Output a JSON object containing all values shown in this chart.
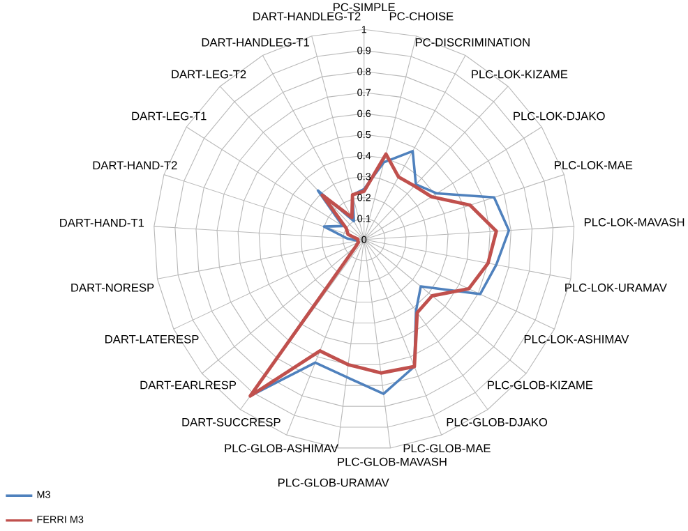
{
  "chart_data": {
    "type": "radar",
    "categories": [
      "PC-SIMPLE",
      "PC-CHOISE",
      "PC-DISCRIMINATION",
      "PLC-LOK-KIZAME",
      "PLC-LOK-DJAKO",
      "PLC-LOK-MAE",
      "PLC-LOK-MAVASH",
      "PLC-LOK-URAMAV",
      "PLC-LOK-ASHIMAV",
      "PLC-GLOB-KIZAME",
      "PLC-GLOB-DJAKO",
      "PLC-GLOB-MAE",
      "PLC-GLOB-MAVASH",
      "PLC-GLOB-URAMAV",
      "PLC-GLOB-ASHIMAV",
      "DART-SUCCRESP",
      "DART-EARLRESP",
      "DART-LATERESP",
      "DART-NORESP",
      "DART-HAND-T1",
      "DART-HAND-T2",
      "DART-LEG-T1",
      "DART-LEG-T2",
      "DART-HANDLEG-T1",
      "DART-HANDLEG-T2"
    ],
    "series": [
      {
        "name": "M3",
        "color": "#4f81bd",
        "values": [
          0.24,
          0.38,
          0.48,
          0.36,
          0.41,
          0.65,
          0.69,
          0.64,
          0.61,
          0.35,
          0.42,
          0.65,
          0.74,
          0.66,
          0.63,
          0.92,
          0.05,
          0.03,
          0.03,
          0.08,
          0.2,
          0.12,
          0.32,
          0.1,
          0.22
        ]
      },
      {
        "name": "FERRI M3",
        "color": "#c0504d",
        "values": [
          0.23,
          0.42,
          0.34,
          0.35,
          0.38,
          0.53,
          0.63,
          0.6,
          0.55,
          0.42,
          0.43,
          0.65,
          0.64,
          0.6,
          0.57,
          0.92,
          0.05,
          0.03,
          0.03,
          0.03,
          0.08,
          0.1,
          0.29,
          0.12,
          0.22
        ]
      }
    ],
    "ylim": [
      0,
      1
    ],
    "yticks": [
      0,
      0.1,
      0.2,
      0.3,
      0.4,
      0.5,
      0.6,
      0.7,
      0.8,
      0.9,
      1
    ],
    "grid": true,
    "legend": "bottom left"
  }
}
